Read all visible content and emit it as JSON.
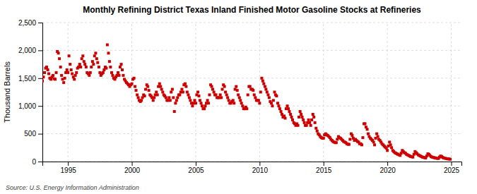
{
  "chart_data": {
    "type": "scatter",
    "title": "Monthly Refining District Texas Inland Finished Motor Gasoline Stocks at Refineries",
    "ylabel": "Thousand Barrels",
    "annotations": [
      "Source: U.S. Energy Information Administration"
    ],
    "color": "#cc0000",
    "marker": "square",
    "grid": true,
    "xlim": [
      1993.0,
      2025.8
    ],
    "xticks": [
      1995,
      2000,
      2005,
      2010,
      2015,
      2020,
      2025
    ],
    "ylim": [
      0,
      2500
    ],
    "yticks": [
      0,
      500,
      {
        "value": 1000,
        "label": "1,000"
      },
      {
        "value": 1500,
        "label": "1,500"
      },
      {
        "value": 2000,
        "label": "2,000"
      },
      {
        "value": 2500,
        "label": "2,500"
      }
    ],
    "x": [
      1993.0,
      1993.08,
      1993.17,
      1993.25,
      1993.33,
      1993.42,
      1993.5,
      1993.58,
      1993.67,
      1993.75,
      1993.83,
      1993.92,
      1994.0,
      1994.08,
      1994.17,
      1994.25,
      1994.33,
      1994.42,
      1994.5,
      1994.58,
      1994.67,
      1994.75,
      1994.83,
      1994.92,
      1995.0,
      1995.08,
      1995.17,
      1995.25,
      1995.33,
      1995.42,
      1995.5,
      1995.58,
      1995.67,
      1995.75,
      1995.83,
      1995.92,
      1996.0,
      1996.08,
      1996.17,
      1996.25,
      1996.33,
      1996.42,
      1996.5,
      1996.58,
      1996.67,
      1996.75,
      1996.83,
      1996.92,
      1997.0,
      1997.08,
      1997.17,
      1997.25,
      1997.33,
      1997.42,
      1997.5,
      1997.58,
      1997.67,
      1997.75,
      1997.83,
      1997.92,
      1998.0,
      1998.08,
      1998.17,
      1998.25,
      1998.33,
      1998.42,
      1998.5,
      1998.58,
      1998.67,
      1998.75,
      1998.83,
      1998.92,
      1999.0,
      1999.08,
      1999.17,
      1999.25,
      1999.33,
      1999.42,
      1999.5,
      1999.58,
      1999.67,
      1999.75,
      1999.83,
      1999.92,
      2000.0,
      2000.08,
      2000.17,
      2000.25,
      2000.33,
      2000.42,
      2000.5,
      2000.58,
      2000.67,
      2000.75,
      2000.83,
      2000.92,
      2001.0,
      2001.08,
      2001.17,
      2001.25,
      2001.33,
      2001.42,
      2001.5,
      2001.58,
      2001.67,
      2001.75,
      2001.83,
      2001.92,
      2002.0,
      2002.08,
      2002.17,
      2002.25,
      2002.33,
      2002.42,
      2002.5,
      2002.58,
      2002.67,
      2002.75,
      2002.83,
      2002.92,
      2003.0,
      2003.08,
      2003.17,
      2003.25,
      2003.33,
      2003.42,
      2003.5,
      2003.58,
      2003.67,
      2003.75,
      2003.83,
      2003.92,
      2004.0,
      2004.08,
      2004.17,
      2004.25,
      2004.33,
      2004.42,
      2004.5,
      2004.58,
      2004.67,
      2004.75,
      2004.83,
      2004.92,
      2005.0,
      2005.08,
      2005.17,
      2005.25,
      2005.33,
      2005.42,
      2005.5,
      2005.58,
      2005.67,
      2005.75,
      2005.83,
      2005.92,
      2006.0,
      2006.08,
      2006.17,
      2006.25,
      2006.33,
      2006.42,
      2006.5,
      2006.58,
      2006.67,
      2006.75,
      2006.83,
      2006.92,
      2007.0,
      2007.08,
      2007.17,
      2007.25,
      2007.33,
      2007.42,
      2007.5,
      2007.58,
      2007.67,
      2007.75,
      2007.83,
      2007.92,
      2008.0,
      2008.08,
      2008.17,
      2008.25,
      2008.33,
      2008.42,
      2008.5,
      2008.58,
      2008.67,
      2008.75,
      2008.83,
      2008.92,
      2009.0,
      2009.08,
      2009.17,
      2009.25,
      2009.33,
      2009.42,
      2009.5,
      2009.58,
      2009.67,
      2009.75,
      2009.83,
      2009.92,
      2010.0,
      2010.08,
      2010.17,
      2010.25,
      2010.33,
      2010.42,
      2010.5,
      2010.58,
      2010.67,
      2010.75,
      2010.83,
      2010.92,
      2011.0,
      2011.08,
      2011.17,
      2011.25,
      2011.33,
      2011.42,
      2011.5,
      2011.58,
      2011.67,
      2011.75,
      2011.83,
      2011.92,
      2012.0,
      2012.08,
      2012.17,
      2012.25,
      2012.33,
      2012.42,
      2012.5,
      2012.58,
      2012.67,
      2012.75,
      2012.83,
      2012.92,
      2013.0,
      2013.08,
      2013.17,
      2013.25,
      2013.33,
      2013.42,
      2013.5,
      2013.58,
      2013.67,
      2013.75,
      2013.83,
      2013.92,
      2014.0,
      2014.08,
      2014.17,
      2014.25,
      2014.33,
      2014.42,
      2014.5,
      2014.58,
      2014.67,
      2014.75,
      2014.83,
      2014.92,
      2015.0,
      2015.08,
      2015.17,
      2015.25,
      2015.33,
      2015.42,
      2015.5,
      2015.58,
      2015.67,
      2015.75,
      2015.83,
      2015.92,
      2016.0,
      2016.08,
      2016.17,
      2016.25,
      2016.33,
      2016.42,
      2016.5,
      2016.58,
      2016.67,
      2016.75,
      2016.83,
      2016.92,
      2017.0,
      2017.08,
      2017.17,
      2017.25,
      2017.33,
      2017.42,
      2017.5,
      2017.58,
      2017.67,
      2017.75,
      2017.83,
      2017.92,
      2018.0,
      2018.08,
      2018.17,
      2018.25,
      2018.33,
      2018.42,
      2018.5,
      2018.58,
      2018.67,
      2018.75,
      2018.83,
      2018.92,
      2019.0,
      2019.08,
      2019.17,
      2019.25,
      2019.33,
      2019.42,
      2019.5,
      2019.58,
      2019.67,
      2019.75,
      2019.83,
      2019.92,
      2020.0,
      2020.08,
      2020.17,
      2020.25,
      2020.33,
      2020.42,
      2020.5,
      2020.58,
      2020.67,
      2020.75,
      2020.83,
      2020.92,
      2021.0,
      2021.08,
      2021.17,
      2021.25,
      2021.33,
      2021.42,
      2021.5,
      2021.58,
      2021.67,
      2021.75,
      2021.83,
      2021.92,
      2022.0,
      2022.08,
      2022.17,
      2022.25,
      2022.33,
      2022.42,
      2022.5,
      2022.58,
      2022.67,
      2022.75,
      2022.83,
      2022.92,
      2023.0,
      2023.08,
      2023.17,
      2023.25,
      2023.33,
      2023.42,
      2023.5,
      2023.58,
      2023.67,
      2023.75,
      2023.83,
      2023.92,
      2024.0,
      2024.08,
      2024.17,
      2024.25,
      2024.33,
      2024.42,
      2024.5,
      2024.58,
      2024.67,
      2024.75,
      2024.83,
      2024.92
    ],
    "values": [
      1450,
      1520,
      1600,
      1680,
      1700,
      1650,
      1580,
      1500,
      1480,
      1520,
      1550,
      1490,
      1480,
      1600,
      1980,
      1950,
      1850,
      1700,
      1550,
      1480,
      1420,
      1500,
      1600,
      1650,
      1600,
      1900,
      1750,
      1650,
      1580,
      1520,
      1480,
      1550,
      1600,
      1680,
      1700,
      1750,
      1700,
      1850,
      1900,
      1800,
      1750,
      1700,
      1600,
      1580,
      1550,
      1600,
      1700,
      1800,
      1750,
      1900,
      1950,
      1850,
      1780,
      1700,
      1600,
      1550,
      1580,
      1600,
      1650,
      1700,
      1680,
      2100,
      1950,
      1800,
      1700,
      1600,
      1550,
      1500,
      1480,
      1520,
      1550,
      1600,
      1550,
      1700,
      1750,
      1650,
      1550,
      1480,
      1450,
      1420,
      1400,
      1380,
      1350,
      1380,
      1400,
      1480,
      1500,
      1350,
      1280,
      1200,
      1150,
      1100,
      1080,
      1100,
      1150,
      1200,
      1180,
      1300,
      1380,
      1350,
      1280,
      1200,
      1180,
      1150,
      1100,
      1150,
      1200,
      1250,
      1200,
      1350,
      1400,
      1350,
      1300,
      1250,
      1200,
      1180,
      1150,
      1100,
      1100,
      1150,
      1100,
      1250,
      1300,
      1150,
      900,
      1050,
      1100,
      1150,
      1200,
      1200,
      1250,
      1300,
      1250,
      1380,
      1400,
      1350,
      1250,
      1200,
      1150,
      1100,
      1050,
      1000,
      1050,
      1100,
      1050,
      1200,
      1250,
      1180,
      1100,
      1050,
      1000,
      950,
      950,
      1000,
      1050,
      1100,
      1050,
      1200,
      1380,
      1350,
      1300,
      1250,
      1200,
      1200,
      1150,
      1150,
      1150,
      1200,
      1150,
      1300,
      1380,
      1350,
      1250,
      1200,
      1150,
      1100,
      1050,
      1050,
      1080,
      1100,
      1050,
      1300,
      1350,
      1280,
      1200,
      1150,
      1100,
      1050,
      1000,
      950,
      950,
      980,
      950,
      1200,
      1350,
      1350,
      1300,
      1300,
      1280,
      1200,
      1150,
      1100,
      1100,
      1100,
      1050,
      1250,
      1500,
      1450,
      1400,
      1350,
      1300,
      1250,
      1200,
      1150,
      1080,
      1050,
      1000,
      1100,
      1250,
      1200,
      1180,
      1050,
      1000,
      950,
      900,
      850,
      800,
      820,
      780,
      950,
      1000,
      950,
      900,
      850,
      800,
      750,
      700,
      680,
      650,
      680,
      650,
      800,
      900,
      850,
      800,
      750,
      700,
      650,
      650,
      700,
      750,
      700,
      650,
      750,
      850,
      800,
      700,
      600,
      550,
      500,
      480,
      450,
      430,
      420,
      420,
      480,
      500,
      480,
      470,
      450,
      430,
      400,
      380,
      360,
      350,
      340,
      340,
      400,
      450,
      430,
      420,
      400,
      380,
      360,
      350,
      340,
      320,
      310,
      310,
      400,
      500,
      470,
      420,
      380,
      400,
      380,
      360,
      350,
      320,
      320,
      300,
      430,
      680,
      680,
      620,
      580,
      500,
      450,
      420,
      400,
      380,
      350,
      300,
      420,
      500,
      450,
      400,
      380,
      350,
      320,
      300,
      280,
      260,
      240,
      200,
      280,
      350,
      300,
      250,
      200,
      180,
      160,
      150,
      140,
      130,
      120,
      110,
      150,
      200,
      180,
      160,
      150,
      130,
      120,
      110,
      100,
      90,
      85,
      80,
      130,
      180,
      160,
      140,
      120,
      110,
      100,
      90,
      80,
      75,
      70,
      65,
      100,
      140,
      130,
      110,
      90,
      80,
      75,
      70,
      65,
      60,
      58,
      55,
      80,
      100,
      90,
      75,
      65,
      60,
      55,
      50,
      48,
      45,
      42
    ]
  }
}
